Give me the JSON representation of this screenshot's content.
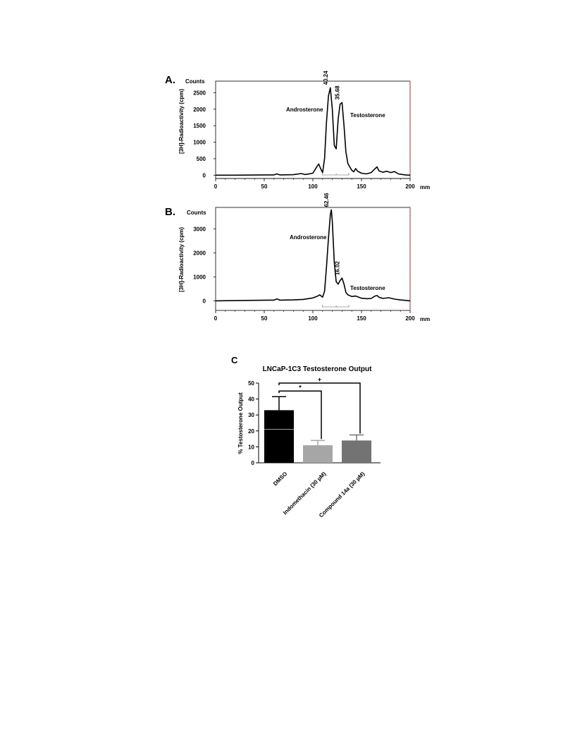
{
  "chart_data": [
    {
      "panel_label": "A.",
      "type": "line",
      "y_unit_label": "Counts",
      "ylabel": "[3H]-Radioactivity (cpm)",
      "x_unit_label": "mm",
      "xlim": [
        0,
        200
      ],
      "ylim": [
        -100,
        2850
      ],
      "x_ticks": [
        0,
        50,
        100,
        150,
        200
      ],
      "x_tick_labels": [
        "0",
        "50",
        "100",
        "150",
        "200"
      ],
      "y_ticks": [
        0,
        500,
        1000,
        1500,
        2000,
        2500
      ],
      "y_tick_labels": [
        "0",
        "500",
        "1000",
        "1500",
        "2000",
        "2500"
      ],
      "peaks": [
        {
          "label": "Androsterone",
          "position": 118,
          "height": 2650,
          "percent": "40.24"
        },
        {
          "label": "Testosterone",
          "position": 130,
          "height": 2200,
          "percent": "35.68"
        }
      ],
      "series": [
        {
          "x": [
            0,
            20,
            40,
            60,
            63,
            66,
            80,
            88,
            92,
            100,
            104,
            106,
            108,
            110,
            112,
            114,
            116,
            118,
            120,
            122,
            124,
            126,
            128,
            130,
            132,
            134,
            136,
            138,
            140,
            142,
            144,
            146,
            150,
            155,
            160,
            164,
            166,
            168,
            172,
            176,
            180,
            184,
            188,
            195,
            200
          ],
          "y": [
            0,
            0,
            5,
            10,
            40,
            10,
            15,
            50,
            20,
            60,
            250,
            340,
            200,
            80,
            500,
            1600,
            2400,
            2650,
            2000,
            900,
            800,
            1700,
            2150,
            2200,
            1500,
            700,
            350,
            250,
            150,
            100,
            200,
            120,
            60,
            40,
            80,
            200,
            250,
            130,
            90,
            120,
            80,
            110,
            40,
            10,
            0
          ]
        }
      ]
    },
    {
      "panel_label": "B.",
      "type": "line",
      "y_unit_label": "Counts",
      "ylabel": "[3H]-Radioactivity (cpm)",
      "x_unit_label": "mm",
      "xlim": [
        0,
        200
      ],
      "ylim": [
        -400,
        3900
      ],
      "x_ticks": [
        0,
        50,
        100,
        150,
        200
      ],
      "x_tick_labels": [
        "0",
        "50",
        "100",
        "150",
        "200"
      ],
      "y_ticks": [
        0,
        1000,
        2000,
        3000
      ],
      "y_tick_labels": [
        "0",
        "1000",
        "2000",
        "3000"
      ],
      "peaks": [
        {
          "label": "Androsterone",
          "position": 119,
          "height": 3800,
          "percent": "62.46"
        },
        {
          "label": "Testosterone",
          "position": 130,
          "height": 950,
          "percent": "16.02"
        }
      ],
      "series": [
        {
          "x": [
            0,
            20,
            40,
            60,
            63,
            66,
            80,
            90,
            100,
            104,
            107,
            110,
            112,
            114,
            116,
            118,
            119,
            120,
            122,
            124,
            126,
            128,
            130,
            132,
            134,
            136,
            140,
            144,
            150,
            156,
            160,
            164,
            166,
            168,
            172,
            178,
            184,
            190,
            200
          ],
          "y": [
            0,
            10,
            20,
            30,
            80,
            30,
            40,
            60,
            120,
            180,
            250,
            150,
            400,
            1400,
            2600,
            3600,
            3800,
            3300,
            1600,
            800,
            700,
            850,
            950,
            700,
            350,
            250,
            180,
            200,
            110,
            90,
            100,
            200,
            220,
            150,
            100,
            130,
            70,
            40,
            0
          ]
        }
      ]
    },
    {
      "panel_label": "C",
      "type": "bar",
      "title": "LNCaP-1C3 Testosterone Output",
      "ylabel": "% Testosterone Output",
      "ylim": [
        0,
        50
      ],
      "y_ticks": [
        0,
        10,
        20,
        30,
        40,
        50
      ],
      "y_tick_labels": [
        "0",
        "10",
        "20",
        "30",
        "40",
        "50"
      ],
      "categories": [
        "DMSO",
        "Indomethacin (30 µM)",
        "Compound 14a (30 µM)"
      ],
      "values": [
        33,
        11,
        14
      ],
      "errors": [
        8.5,
        3,
        3.5
      ],
      "bar_colors": [
        "#000000",
        "#a6a6a6",
        "#737373"
      ],
      "significance": [
        {
          "from": 0,
          "to": 1,
          "label": "*"
        },
        {
          "from": 0,
          "to": 2,
          "label": "+"
        }
      ]
    }
  ]
}
